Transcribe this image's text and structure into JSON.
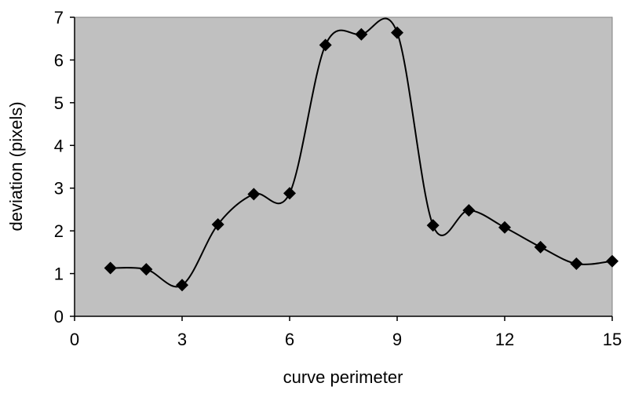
{
  "chart_data": {
    "type": "line",
    "smooth": true,
    "marker": "diamond",
    "title": "",
    "xlabel": "curve perimeter",
    "ylabel": "deviation (pixels)",
    "xlim": [
      0,
      15
    ],
    "ylim": [
      0,
      7
    ],
    "x_ticks": [
      "0",
      "3",
      "6",
      "9",
      "12",
      "15"
    ],
    "y_ticks": [
      "0",
      "1",
      "2",
      "3",
      "4",
      "5",
      "6",
      "7"
    ],
    "grid": false,
    "legend": "none",
    "colors": {
      "plot_background": "#c0c0c0",
      "series": "#000000",
      "axis": "#000000"
    },
    "series": [
      {
        "x": [
          1,
          2,
          3,
          4,
          5,
          6,
          7,
          8,
          9,
          10,
          11,
          12,
          13,
          14,
          15
        ],
        "values": [
          1.13,
          1.1,
          0.73,
          2.15,
          2.86,
          2.88,
          6.35,
          6.6,
          6.64,
          2.13,
          2.48,
          2.08,
          1.62,
          1.23,
          1.29
        ]
      }
    ]
  }
}
